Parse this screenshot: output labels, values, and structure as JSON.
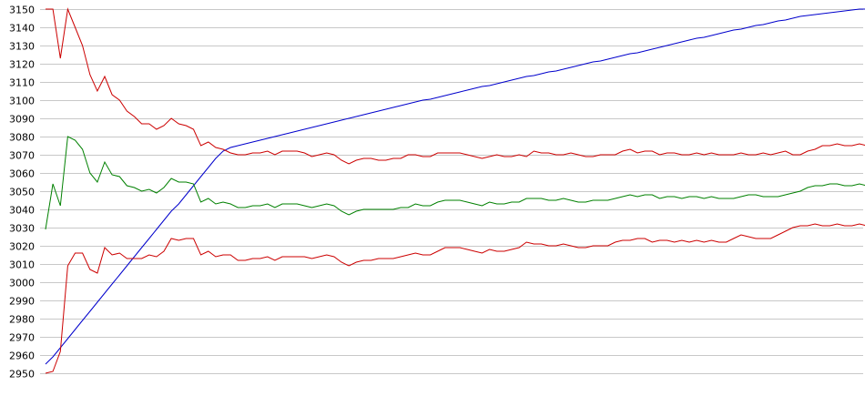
{
  "chart_data": {
    "type": "line",
    "title": "",
    "xlabel": "",
    "ylabel": "",
    "ylim": [
      2950,
      3150
    ],
    "grid": true,
    "legend": "none",
    "yticks": [
      2950,
      2960,
      2970,
      2980,
      2990,
      3000,
      3010,
      3020,
      3030,
      3040,
      3050,
      3060,
      3070,
      3080,
      3090,
      3100,
      3110,
      3120,
      3130,
      3140,
      3150
    ],
    "x": [
      0,
      1,
      2,
      3,
      4,
      5,
      6,
      7,
      8,
      9,
      10,
      11,
      12,
      13,
      14,
      15,
      16,
      17,
      18,
      19,
      20,
      21,
      22,
      23,
      24,
      25,
      26,
      27,
      28,
      29,
      30,
      31,
      32,
      33,
      34,
      35,
      36,
      37,
      38,
      39,
      40,
      41,
      42,
      43,
      44,
      45,
      46,
      47,
      48,
      49,
      50,
      51,
      52,
      53,
      54,
      55,
      56,
      57,
      58,
      59,
      60,
      61,
      62,
      63,
      64,
      65,
      66,
      67,
      68,
      69,
      70,
      71,
      72,
      73,
      74,
      75,
      76,
      77,
      78,
      79,
      80,
      81,
      82,
      83,
      84,
      85,
      86,
      87,
      88,
      89,
      90,
      91,
      92,
      93,
      94,
      95,
      96,
      97,
      98,
      99,
      100,
      101,
      102,
      103,
      104,
      105,
      106,
      107,
      108,
      109,
      110,
      111
    ],
    "series": [
      {
        "color": "#0000cc",
        "values": [
          2955,
          2959,
          2964,
          2969,
          2974,
          2979,
          2984,
          2989,
          2994,
          2999,
          3004,
          3009,
          3014,
          3019,
          3024,
          3029,
          3034,
          3039,
          3043,
          3048,
          3053,
          3058,
          3063,
          3068,
          3072,
          3074,
          3075,
          3076,
          3077,
          3078,
          3079,
          3080,
          3081,
          3082,
          3083,
          3084,
          3085,
          3086,
          3087,
          3088,
          3089,
          3090,
          3091,
          3092,
          3093,
          3094,
          3095,
          3096,
          3097,
          3098,
          3099,
          3100,
          3100.5,
          3101.5,
          3102.5,
          3103.5,
          3104.5,
          3105.5,
          3106.5,
          3107.5,
          3108,
          3109,
          3110,
          3111,
          3112,
          3113,
          3113.5,
          3114.5,
          3115.5,
          3116,
          3117,
          3118,
          3119,
          3120,
          3121,
          3121.5,
          3122.5,
          3123.5,
          3124.5,
          3125.5,
          3126,
          3127,
          3128,
          3129,
          3130,
          3131,
          3132,
          3133,
          3134,
          3134.5,
          3135.5,
          3136.5,
          3137.5,
          3138.5,
          3139,
          3140,
          3141,
          3141.5,
          3142.5,
          3143.5,
          3144,
          3145,
          3146,
          3146.5,
          3147,
          3147.5,
          3148,
          3148.5,
          3149,
          3149.5,
          3150,
          3150
        ]
      },
      {
        "color": "#cc0000",
        "values": [
          3150,
          3150,
          3123,
          3150,
          3140,
          3130,
          3114,
          3105,
          3113,
          3103,
          3100,
          3094,
          3091,
          3087,
          3087,
          3084,
          3086,
          3090,
          3087,
          3086,
          3084,
          3075,
          3077,
          3074,
          3073,
          3071,
          3070,
          3070,
          3071,
          3071,
          3072,
          3070,
          3072,
          3072,
          3072,
          3071,
          3069,
          3070,
          3071,
          3070,
          3067,
          3065,
          3067,
          3068,
          3068,
          3067,
          3067,
          3068,
          3068,
          3070,
          3070,
          3069,
          3069,
          3071,
          3071,
          3071,
          3071,
          3070,
          3069,
          3068,
          3069,
          3070,
          3069,
          3069,
          3070,
          3069,
          3072,
          3071,
          3071,
          3070,
          3070,
          3071,
          3070,
          3069,
          3069,
          3070,
          3070,
          3070,
          3072,
          3073,
          3071,
          3072,
          3072,
          3070,
          3071,
          3071,
          3070,
          3070,
          3071,
          3070,
          3071,
          3070,
          3070,
          3070,
          3071,
          3070,
          3070,
          3071,
          3070,
          3071,
          3072,
          3070,
          3070,
          3072,
          3073,
          3075,
          3075,
          3076,
          3075,
          3075,
          3076,
          3075
        ]
      },
      {
        "color": "#008000",
        "values": [
          3029,
          3054,
          3042,
          3080,
          3078,
          3073,
          3060,
          3055,
          3066,
          3059,
          3058,
          3053,
          3052,
          3050,
          3051,
          3049,
          3052,
          3057,
          3055,
          3055,
          3054,
          3044,
          3046,
          3043,
          3044,
          3043,
          3041,
          3041,
          3042,
          3042,
          3043,
          3041,
          3043,
          3043,
          3043,
          3042,
          3041,
          3042,
          3043,
          3042,
          3039,
          3037,
          3039,
          3040,
          3040,
          3040,
          3040,
          3040,
          3041,
          3041,
          3043,
          3042,
          3042,
          3044,
          3045,
          3045,
          3045,
          3044,
          3043,
          3042,
          3044,
          3043,
          3043,
          3044,
          3044,
          3046,
          3046,
          3046,
          3045,
          3045,
          3046,
          3045,
          3044,
          3044,
          3045,
          3045,
          3045,
          3046,
          3047,
          3048,
          3047,
          3048,
          3048,
          3046,
          3047,
          3047,
          3046,
          3047,
          3047,
          3046,
          3047,
          3046,
          3046,
          3046,
          3047,
          3048,
          3048,
          3047,
          3047,
          3047,
          3048,
          3049,
          3050,
          3052,
          3053,
          3053,
          3054,
          3054,
          3053,
          3053,
          3054,
          3053
        ]
      },
      {
        "color": "#cc0000",
        "values": [
          2950,
          2951,
          2962,
          3009,
          3016,
          3016,
          3007,
          3005,
          3019,
          3015,
          3016,
          3013,
          3013,
          3013,
          3015,
          3014,
          3017,
          3024,
          3023,
          3024,
          3024,
          3015,
          3017,
          3014,
          3015,
          3015,
          3012,
          3012,
          3013,
          3013,
          3014,
          3012,
          3014,
          3014,
          3014,
          3014,
          3013,
          3014,
          3015,
          3014,
          3011,
          3009,
          3011,
          3012,
          3012,
          3013,
          3013,
          3013,
          3014,
          3015,
          3016,
          3015,
          3015,
          3017,
          3019,
          3019,
          3019,
          3018,
          3017,
          3016,
          3018,
          3017,
          3017,
          3018,
          3019,
          3022,
          3021,
          3021,
          3020,
          3020,
          3021,
          3020,
          3019,
          3019,
          3020,
          3020,
          3020,
          3022,
          3023,
          3023,
          3024,
          3024,
          3022,
          3023,
          3023,
          3022,
          3023,
          3022,
          3023,
          3022,
          3023,
          3022,
          3022,
          3024,
          3026,
          3025,
          3024,
          3024,
          3024,
          3026,
          3028,
          3030,
          3031,
          3031,
          3032,
          3031,
          3031,
          3032,
          3031,
          3031,
          3032,
          3031
        ]
      }
    ]
  }
}
